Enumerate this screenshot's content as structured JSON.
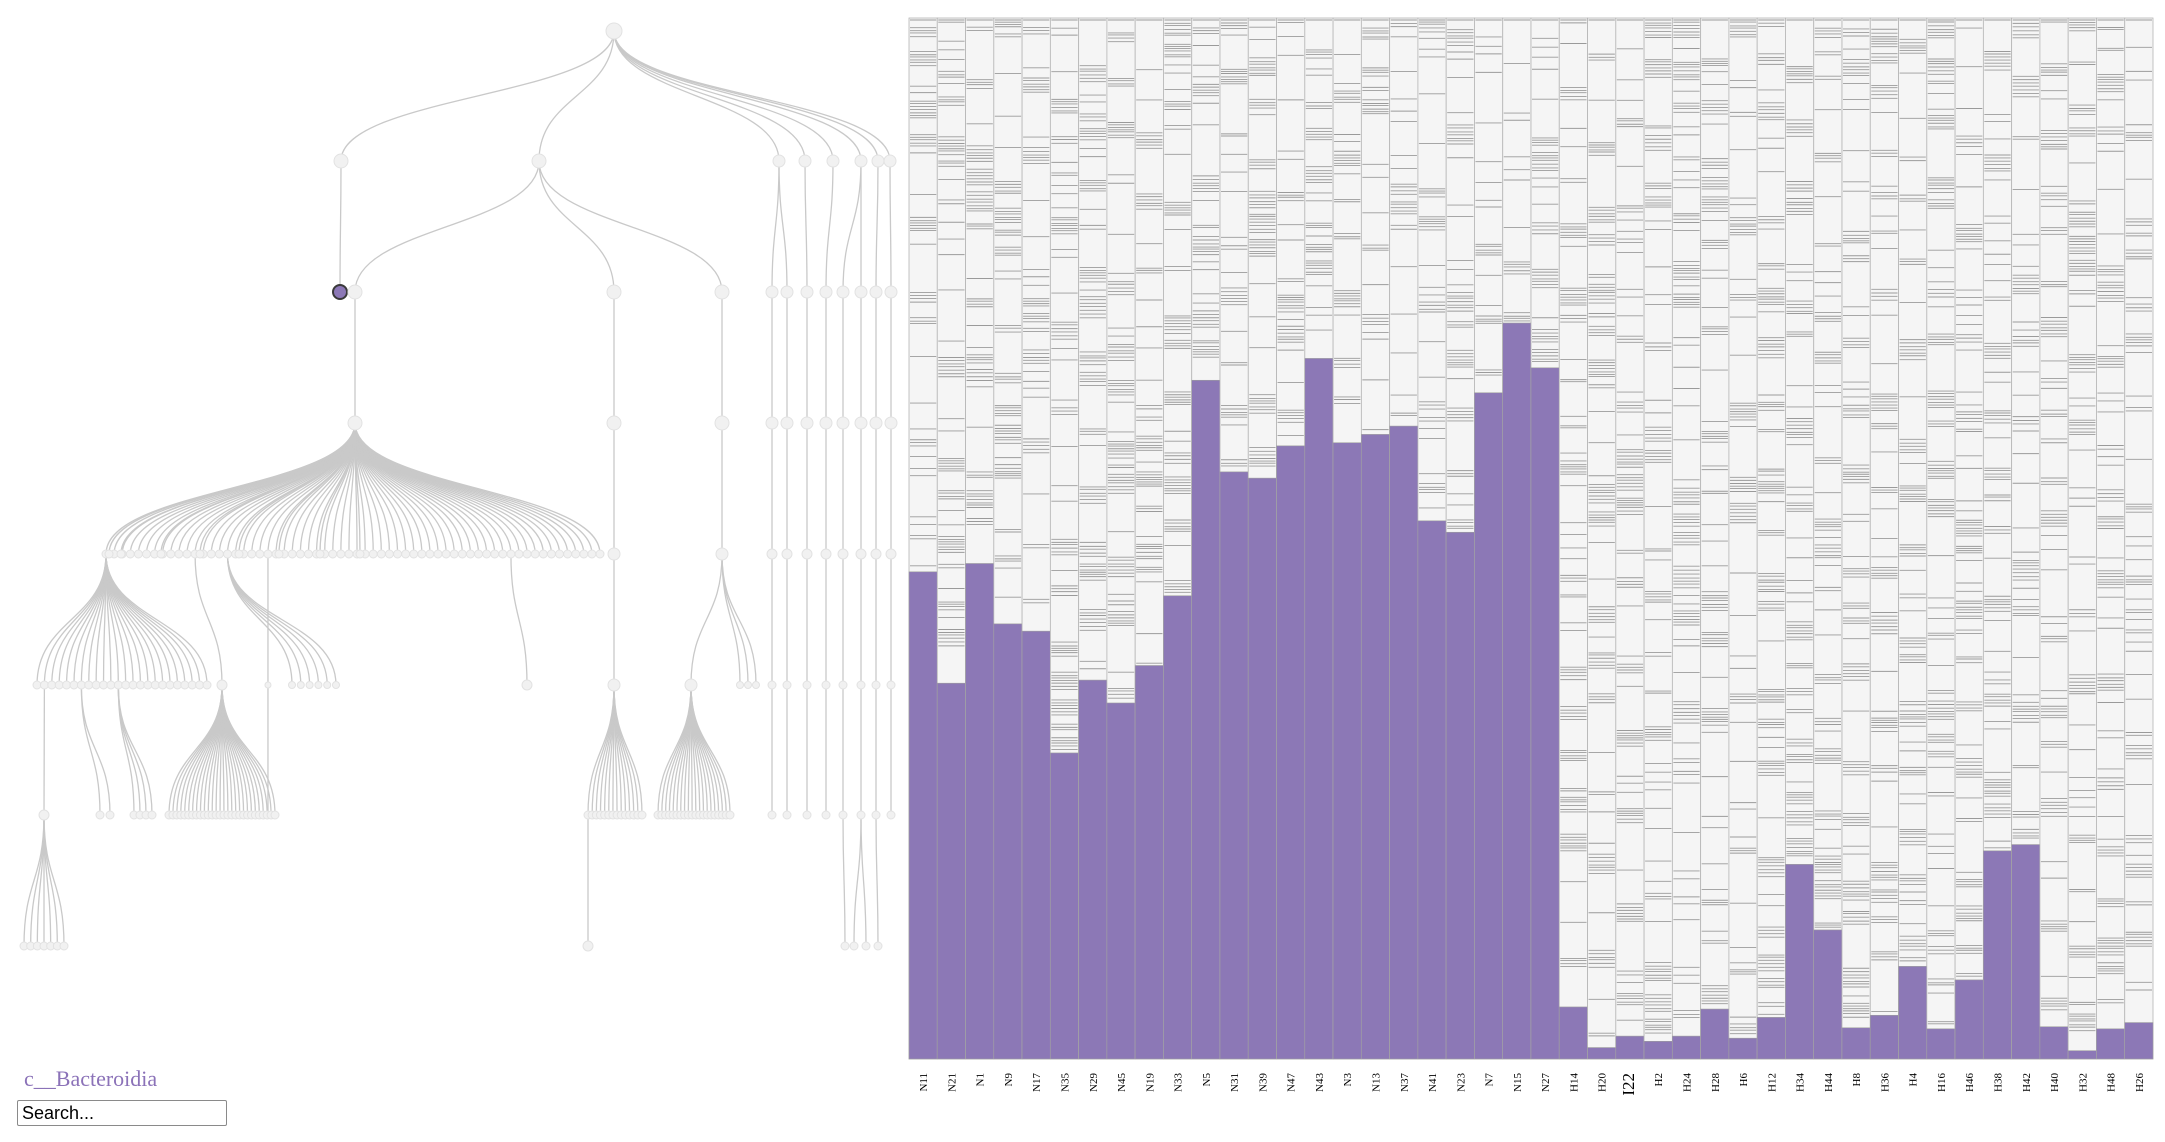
{
  "selected_node": {
    "label": "c__Bacteroidia"
  },
  "search": {
    "placeholder": "Search..."
  },
  "colors": {
    "highlight": "#8c78b6",
    "node_fill": "#f1f1f1",
    "node_stroke": "#e2e2e2",
    "link": "#c9c9c9",
    "segment_fill": "#f5f5f5",
    "segment_line": "#9a9a9a",
    "selected_node_stroke": "#3a3a3a"
  },
  "chart_data": {
    "type": "bar",
    "stacked": true,
    "title": "",
    "xlabel": "",
    "ylabel": "",
    "ylim": [
      0,
      1
    ],
    "categories": [
      "N11",
      "N21",
      "N1",
      "N9",
      "N17",
      "N35",
      "N29",
      "N45",
      "N19",
      "N33",
      "N5",
      "N31",
      "N39",
      "N47",
      "N43",
      "N3",
      "N13",
      "N37",
      "N41",
      "N23",
      "N7",
      "N15",
      "N27",
      "H14",
      "H20",
      "I22",
      "H2",
      "H24",
      "H28",
      "H6",
      "H12",
      "H34",
      "H44",
      "H8",
      "H36",
      "H4",
      "H16",
      "H46",
      "H38",
      "H42",
      "H40",
      "H32",
      "H48",
      "H26"
    ],
    "series": [
      {
        "name": "c__Bacteroidia",
        "values": [
          0.468,
          0.361,
          0.476,
          0.418,
          0.411,
          0.294,
          0.364,
          0.342,
          0.378,
          0.445,
          0.652,
          0.564,
          0.558,
          0.589,
          0.673,
          0.592,
          0.6,
          0.608,
          0.517,
          0.506,
          0.64,
          0.707,
          0.664,
          0.05,
          0.011,
          0.022,
          0.017,
          0.022,
          0.048,
          0.02,
          0.04,
          0.187,
          0.124,
          0.03,
          0.042,
          0.089,
          0.029,
          0.076,
          0.2,
          0.206,
          0.031,
          0.008,
          0.029,
          0.035
        ]
      }
    ]
  }
}
